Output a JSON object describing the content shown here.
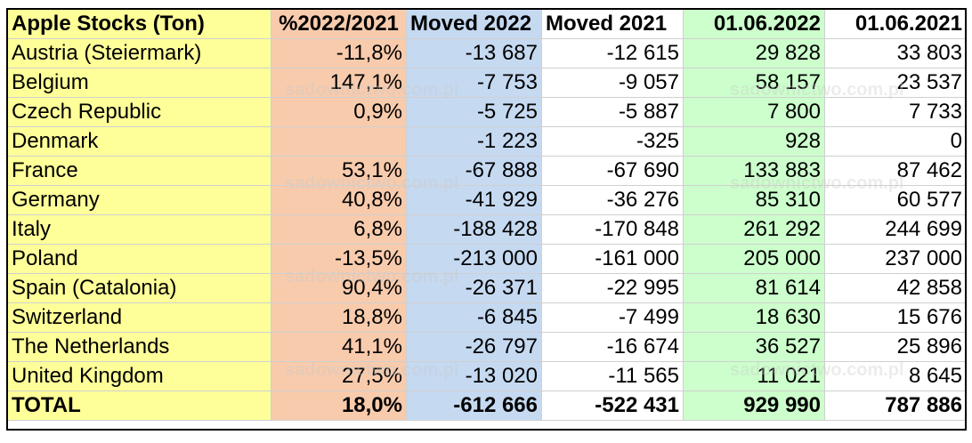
{
  "table": {
    "headers": [
      "Apple Stocks (Ton)",
      "%2022/2021",
      "Moved 2022",
      "Moved 2021",
      "01.06.2022",
      "01.06.2021"
    ],
    "rows": [
      [
        "Austria (Steiermark)",
        "-11,8%",
        "-13 687",
        "-12 615",
        "29 828",
        "33 803"
      ],
      [
        "Belgium",
        "147,1%",
        "-7 753",
        "-9 057",
        "58 157",
        "23 537"
      ],
      [
        "Czech Republic",
        "0,9%",
        "-5 725",
        "-5 887",
        "7 800",
        "7 733"
      ],
      [
        "Denmark",
        "",
        "-1 223",
        "-325",
        "928",
        "0"
      ],
      [
        "France",
        "53,1%",
        "-67 888",
        "-67 690",
        "133 883",
        "87 462"
      ],
      [
        "Germany",
        "40,8%",
        "-41 929",
        "-36 276",
        "85 310",
        "60 577"
      ],
      [
        "Italy",
        "6,8%",
        "-188 428",
        "-170 848",
        "261 292",
        "244 699"
      ],
      [
        "Poland",
        "-13,5%",
        "-213 000",
        "-161 000",
        "205 000",
        "237 000"
      ],
      [
        "Spain (Catalonia)",
        "90,4%",
        "-26 371",
        "-22 995",
        "81 614",
        "42 858"
      ],
      [
        "Switzerland",
        "18,8%",
        "-6 845",
        "-7 499",
        "18 630",
        "15 676"
      ],
      [
        "The Netherlands",
        "41,1%",
        "-26 797",
        "-16 674",
        "36 527",
        "25 896"
      ],
      [
        "United Kingdom",
        "27,5%",
        "-13 020",
        "-11 565",
        "11 021",
        "8 645"
      ]
    ],
    "total": [
      "TOTAL",
      "18,0%",
      "-612 666",
      "-522 431",
      "929 990",
      "787 886"
    ]
  },
  "watermark": "sadownictwo.com.pl",
  "colors": {
    "col_country": "#ffff99",
    "col_percent": "#f8cbad",
    "col_moved_2022": "#c5d9f1",
    "col_stock_2022": "#ccffcc"
  }
}
